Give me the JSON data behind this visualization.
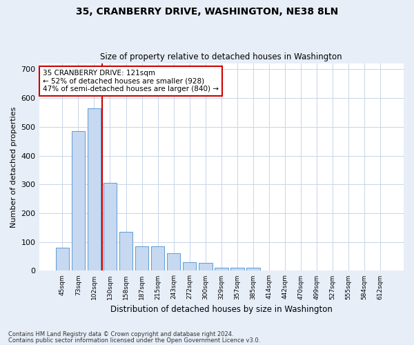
{
  "title": "35, CRANBERRY DRIVE, WASHINGTON, NE38 8LN",
  "subtitle": "Size of property relative to detached houses in Washington",
  "xlabel": "Distribution of detached houses by size in Washington",
  "ylabel": "Number of detached properties",
  "footnote1": "Contains HM Land Registry data © Crown copyright and database right 2024.",
  "footnote2": "Contains public sector information licensed under the Open Government Licence v3.0.",
  "annotation_title": "35 CRANBERRY DRIVE: 121sqm",
  "annotation_line2": "← 52% of detached houses are smaller (928)",
  "annotation_line3": "47% of semi-detached houses are larger (840) →",
  "property_size": 121,
  "bar_labels": [
    "45sqm",
    "73sqm",
    "102sqm",
    "130sqm",
    "158sqm",
    "187sqm",
    "215sqm",
    "243sqm",
    "272sqm",
    "300sqm",
    "329sqm",
    "357sqm",
    "385sqm",
    "414sqm",
    "442sqm",
    "470sqm",
    "499sqm",
    "527sqm",
    "555sqm",
    "584sqm",
    "612sqm"
  ],
  "bar_values": [
    80,
    485,
    565,
    305,
    135,
    85,
    85,
    60,
    30,
    27,
    10,
    10,
    10,
    0,
    0,
    0,
    0,
    0,
    0,
    0,
    0
  ],
  "bar_color": "#c6d9f0",
  "bar_edge_color": "#5b9bd5",
  "vline_color": "#cc0000",
  "vline_x": 2.5,
  "ylim": [
    0,
    720
  ],
  "yticks": [
    0,
    100,
    200,
    300,
    400,
    500,
    600,
    700
  ],
  "grid_color": "#c8d4e8",
  "background_color": "#e8eef8",
  "plot_background": "#ffffff"
}
